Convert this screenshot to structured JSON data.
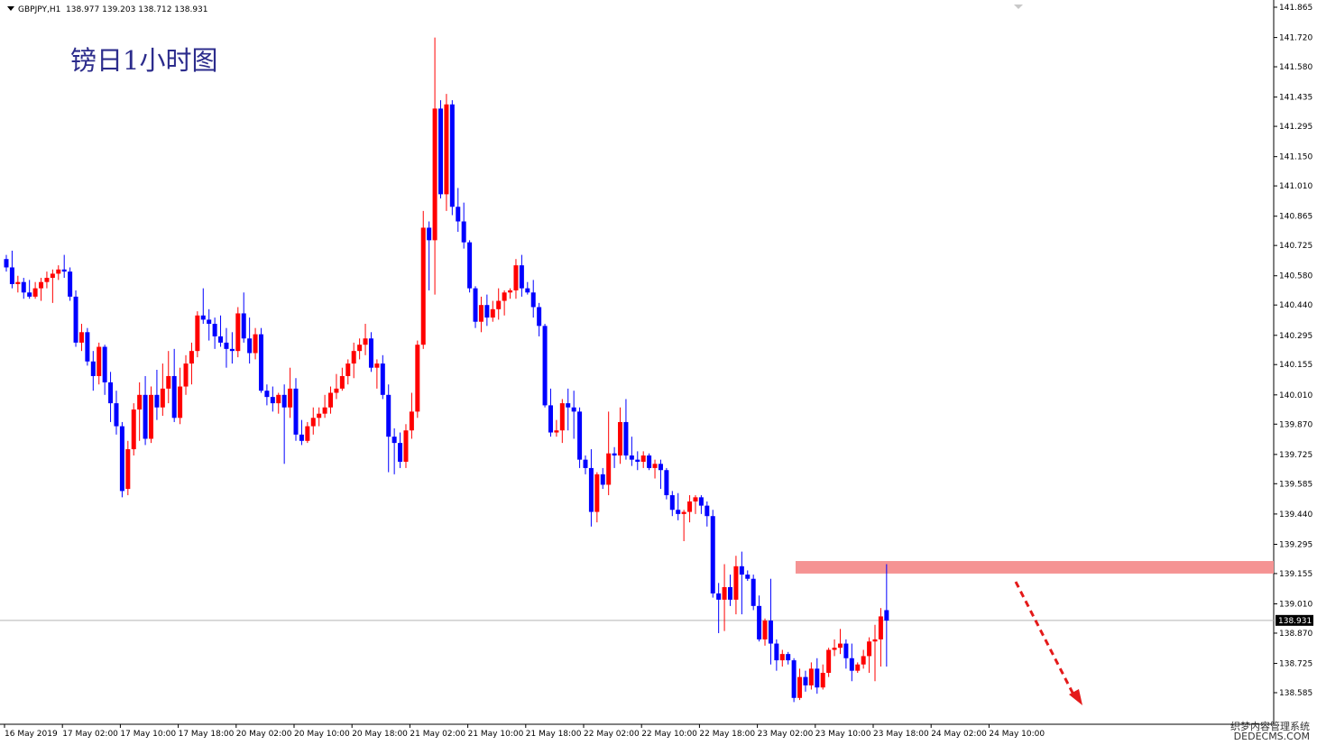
{
  "header": {
    "symbol": "GBPJPY,H1",
    "ohlc": "138.977 139.203 138.712 138.931"
  },
  "title": "镑日1小时图",
  "watermark": {
    "line1": "织梦内容管理系统",
    "line2": "DEDECMS.COM"
  },
  "colors": {
    "bull": "#ff0000",
    "bear": "#0000ff",
    "zone": "#f59393",
    "arrow": "#e41a1a",
    "grid": "#b4b4b4",
    "axis": "#000000"
  },
  "chart_data": {
    "type": "candlestick",
    "title": "镑日1小时图",
    "symbol": "GBPJPY,H1",
    "y_ticks": [
      "141.865",
      "141.720",
      "141.580",
      "141.435",
      "141.295",
      "141.150",
      "141.010",
      "140.865",
      "140.725",
      "140.580",
      "140.440",
      "140.295",
      "140.155",
      "140.010",
      "139.870",
      "139.725",
      "139.585",
      "139.440",
      "139.295",
      "139.155",
      "139.010",
      "138.870",
      "138.725",
      "138.585"
    ],
    "ylim": [
      138.52,
      141.88
    ],
    "current_price": "138.931",
    "x_ticks": [
      "16 May 2019",
      "17 May 02:00",
      "17 May 10:00",
      "17 May 18:00",
      "20 May 02:00",
      "20 May 10:00",
      "20 May 18:00",
      "21 May 02:00",
      "21 May 10:00",
      "21 May 18:00",
      "22 May 02:00",
      "22 May 10:00",
      "22 May 18:00",
      "23 May 02:00",
      "23 May 10:00",
      "23 May 18:00",
      "24 May 02:00",
      "24 May 10:00"
    ],
    "resistance_zone": [
      139.155,
      139.215
    ],
    "projection": "down",
    "candles": [
      [
        140.66,
        140.68,
        140.6,
        140.62
      ],
      [
        140.62,
        140.7,
        140.52,
        140.54
      ],
      [
        140.54,
        140.58,
        140.5,
        140.55
      ],
      [
        140.55,
        140.57,
        140.47,
        140.5
      ],
      [
        140.5,
        140.56,
        140.47,
        140.48
      ],
      [
        140.48,
        140.55,
        140.47,
        140.52
      ],
      [
        140.52,
        140.57,
        140.46,
        140.55
      ],
      [
        140.55,
        140.6,
        140.52,
        140.57
      ],
      [
        140.57,
        140.61,
        140.45,
        140.59
      ],
      [
        140.59,
        140.63,
        140.56,
        140.61
      ],
      [
        140.61,
        140.68,
        140.57,
        140.6
      ],
      [
        140.6,
        140.62,
        140.46,
        140.48
      ],
      [
        140.48,
        140.51,
        140.24,
        140.26
      ],
      [
        140.26,
        140.35,
        140.22,
        140.31
      ],
      [
        140.31,
        140.33,
        140.15,
        140.17
      ],
      [
        140.17,
        140.22,
        140.03,
        140.1
      ],
      [
        140.1,
        140.26,
        140.06,
        140.24
      ],
      [
        140.24,
        140.25,
        140.01,
        140.07
      ],
      [
        140.07,
        140.12,
        139.88,
        139.97
      ],
      [
        139.97,
        140.03,
        139.82,
        139.86
      ],
      [
        139.86,
        139.88,
        139.52,
        139.55
      ],
      [
        139.56,
        139.79,
        139.53,
        139.75
      ],
      [
        139.75,
        139.97,
        139.72,
        139.94
      ],
      [
        139.94,
        140.07,
        139.79,
        140.01
      ],
      [
        140.01,
        140.1,
        139.77,
        139.8
      ],
      [
        139.8,
        140.05,
        139.78,
        140.01
      ],
      [
        140.01,
        140.13,
        139.89,
        139.95
      ],
      [
        139.95,
        140.16,
        139.91,
        140.04
      ],
      [
        140.04,
        140.22,
        139.97,
        140.1
      ],
      [
        140.1,
        140.23,
        139.88,
        139.9
      ],
      [
        139.9,
        140.14,
        139.87,
        140.05
      ],
      [
        140.05,
        140.2,
        140.01,
        140.16
      ],
      [
        140.16,
        140.26,
        140.06,
        140.22
      ],
      [
        140.22,
        140.41,
        140.19,
        140.39
      ],
      [
        140.39,
        140.52,
        140.35,
        140.37
      ],
      [
        140.37,
        140.42,
        140.27,
        140.35
      ],
      [
        140.35,
        140.38,
        140.23,
        140.29
      ],
      [
        140.29,
        140.39,
        140.24,
        140.26
      ],
      [
        140.26,
        140.33,
        140.14,
        140.23
      ],
      [
        140.23,
        140.31,
        140.16,
        140.22
      ],
      [
        140.22,
        140.43,
        140.19,
        140.4
      ],
      [
        140.4,
        140.5,
        140.26,
        140.28
      ],
      [
        140.28,
        140.38,
        140.16,
        140.21
      ],
      [
        140.21,
        140.33,
        140.18,
        140.3
      ],
      [
        140.3,
        140.33,
        140.02,
        140.03
      ],
      [
        140.03,
        140.06,
        139.96,
        140.0
      ],
      [
        140.0,
        140.05,
        139.93,
        139.97
      ],
      [
        139.97,
        140.02,
        139.92,
        140.01
      ],
      [
        140.01,
        140.06,
        139.68,
        139.95
      ],
      [
        139.95,
        140.14,
        139.9,
        140.04
      ],
      [
        140.04,
        140.09,
        139.79,
        139.82
      ],
      [
        139.82,
        139.89,
        139.77,
        139.79
      ],
      [
        139.79,
        139.88,
        139.78,
        139.86
      ],
      [
        139.86,
        139.95,
        139.82,
        139.9
      ],
      [
        139.9,
        139.95,
        139.86,
        139.92
      ],
      [
        139.92,
        140.01,
        139.9,
        139.95
      ],
      [
        139.95,
        140.05,
        139.92,
        140.02
      ],
      [
        140.02,
        140.11,
        139.99,
        140.04
      ],
      [
        140.04,
        140.14,
        140.03,
        140.1
      ],
      [
        140.1,
        140.18,
        140.06,
        140.16
      ],
      [
        140.16,
        140.26,
        140.09,
        140.22
      ],
      [
        140.22,
        140.28,
        140.18,
        140.25
      ],
      [
        140.25,
        140.35,
        140.2,
        140.28
      ],
      [
        140.28,
        140.31,
        140.12,
        140.14
      ],
      [
        140.14,
        140.18,
        140.04,
        140.16
      ],
      [
        140.16,
        140.2,
        139.99,
        140.01
      ],
      [
        140.01,
        140.06,
        139.64,
        139.81
      ],
      [
        139.81,
        139.85,
        139.63,
        139.78
      ],
      [
        139.78,
        139.83,
        139.66,
        139.69
      ],
      [
        139.69,
        139.87,
        139.66,
        139.84
      ],
      [
        139.84,
        140.02,
        139.8,
        139.93
      ],
      [
        139.93,
        140.27,
        139.9,
        140.25
      ],
      [
        140.25,
        140.89,
        140.23,
        140.81
      ],
      [
        140.81,
        140.84,
        140.51,
        140.75
      ],
      [
        140.75,
        141.72,
        140.49,
        141.38
      ],
      [
        141.38,
        141.42,
        140.95,
        140.97
      ],
      [
        140.97,
        141.45,
        140.89,
        141.4
      ],
      [
        141.4,
        141.42,
        140.87,
        140.91
      ],
      [
        140.91,
        141.0,
        140.79,
        140.84
      ],
      [
        140.84,
        140.93,
        140.71,
        140.74
      ],
      [
        140.74,
        140.75,
        140.5,
        140.52
      ],
      [
        140.52,
        140.53,
        140.33,
        140.36
      ],
      [
        140.36,
        140.48,
        140.31,
        140.44
      ],
      [
        140.44,
        140.49,
        140.34,
        140.38
      ],
      [
        140.38,
        140.46,
        140.36,
        140.42
      ],
      [
        140.42,
        140.52,
        140.37,
        140.46
      ],
      [
        140.46,
        140.51,
        140.39,
        140.5
      ],
      [
        140.5,
        140.52,
        140.47,
        140.51
      ],
      [
        140.51,
        140.66,
        140.47,
        140.63
      ],
      [
        140.63,
        140.68,
        140.48,
        140.52
      ],
      [
        140.52,
        140.55,
        140.49,
        140.5
      ],
      [
        140.5,
        140.56,
        140.38,
        140.43
      ],
      [
        140.43,
        140.45,
        140.29,
        140.34
      ],
      [
        140.34,
        140.35,
        139.95,
        139.96
      ],
      [
        139.96,
        140.04,
        139.81,
        139.83
      ],
      [
        139.83,
        139.89,
        139.81,
        139.84
      ],
      [
        139.84,
        139.99,
        139.78,
        139.97
      ],
      [
        139.97,
        140.04,
        139.84,
        139.95
      ],
      [
        139.95,
        140.03,
        139.8,
        139.93
      ],
      [
        139.93,
        139.95,
        139.66,
        139.7
      ],
      [
        139.7,
        139.72,
        139.63,
        139.66
      ],
      [
        139.66,
        139.75,
        139.38,
        139.45
      ],
      [
        139.45,
        139.64,
        139.4,
        139.63
      ],
      [
        139.63,
        139.66,
        139.56,
        139.58
      ],
      [
        139.58,
        139.93,
        139.53,
        139.73
      ],
      [
        139.73,
        139.76,
        139.66,
        139.72
      ],
      [
        139.72,
        139.95,
        139.68,
        139.88
      ],
      [
        139.88,
        139.99,
        139.7,
        139.72
      ],
      [
        139.72,
        139.81,
        139.67,
        139.7
      ],
      [
        139.7,
        139.74,
        139.65,
        139.69
      ],
      [
        139.69,
        139.74,
        139.66,
        139.72
      ],
      [
        139.72,
        139.73,
        139.65,
        139.66
      ],
      [
        139.66,
        139.7,
        139.61,
        139.68
      ],
      [
        139.68,
        139.7,
        139.56,
        139.65
      ],
      [
        139.65,
        139.66,
        139.51,
        139.53
      ],
      [
        139.53,
        139.55,
        139.43,
        139.46
      ],
      [
        139.46,
        139.54,
        139.41,
        139.44
      ],
      [
        139.44,
        139.46,
        139.31,
        139.45
      ],
      [
        139.45,
        139.53,
        139.4,
        139.5
      ],
      [
        139.5,
        139.53,
        139.44,
        139.52
      ],
      [
        139.52,
        139.53,
        139.44,
        139.48
      ],
      [
        139.48,
        139.5,
        139.38,
        139.43
      ],
      [
        139.43,
        139.46,
        139.04,
        139.06
      ],
      [
        139.06,
        139.11,
        138.87,
        139.03
      ],
      [
        139.03,
        139.2,
        138.88,
        139.09
      ],
      [
        139.09,
        139.15,
        139.0,
        139.03
      ],
      [
        139.03,
        139.24,
        138.96,
        139.19
      ],
      [
        139.19,
        139.26,
        138.96,
        139.15
      ],
      [
        139.15,
        139.17,
        139.12,
        139.13
      ],
      [
        139.13,
        139.15,
        138.98,
        139.0
      ],
      [
        139.0,
        139.05,
        138.83,
        138.84
      ],
      [
        138.84,
        138.94,
        138.81,
        138.93
      ],
      [
        138.93,
        139.13,
        138.72,
        138.82
      ],
      [
        138.82,
        138.84,
        138.69,
        138.74
      ],
      [
        138.74,
        138.79,
        138.71,
        138.77
      ],
      [
        138.77,
        138.78,
        138.72,
        138.74
      ],
      [
        138.74,
        138.75,
        138.54,
        138.56
      ],
      [
        138.56,
        138.7,
        138.55,
        138.66
      ],
      [
        138.66,
        138.69,
        138.59,
        138.62
      ],
      [
        138.62,
        138.73,
        138.6,
        138.7
      ],
      [
        138.7,
        138.75,
        138.58,
        138.61
      ],
      [
        138.61,
        138.72,
        138.6,
        138.68
      ],
      [
        138.68,
        138.8,
        138.66,
        138.79
      ],
      [
        138.79,
        138.84,
        138.76,
        138.8
      ],
      [
        138.8,
        138.89,
        138.77,
        138.82
      ],
      [
        138.82,
        138.84,
        138.7,
        138.75
      ],
      [
        138.75,
        138.82,
        138.64,
        138.69
      ],
      [
        138.69,
        138.73,
        138.68,
        138.72
      ],
      [
        138.72,
        138.79,
        138.7,
        138.76
      ],
      [
        138.76,
        138.85,
        138.68,
        138.83
      ],
      [
        138.83,
        138.91,
        138.64,
        138.84
      ],
      [
        138.84,
        138.99,
        138.71,
        138.95
      ],
      [
        138.98,
        139.2,
        138.71,
        138.93
      ]
    ]
  }
}
